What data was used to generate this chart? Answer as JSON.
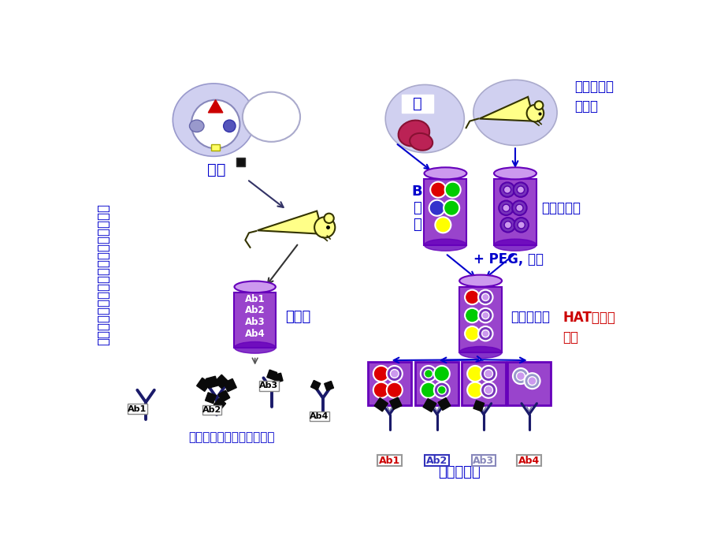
{
  "bg_color": "#ffffff",
  "title_vertical": "单克隆抗体和多克隆抗体产生区别示意图",
  "title_color": "#0000cc",
  "antigen_label": "抗原",
  "serum_label": "抗血清",
  "spleen_label": "脾",
  "bone_tumor_label": "骨髓瘤小鼠\n取腹水",
  "b_cell_label": "B\n细\n胞",
  "myeloma_label": "骨髓瘤细胞",
  "peg_label": "+ PEG, 融合",
  "hybridoma_label": "杂交瘤细胞",
  "hat_label": "HAT培养，\n稀释",
  "polyclonal_label": "普通抗血清（多克隆抗体）",
  "monoclonal_label": "单克隆抗体",
  "purple_dark": "#5500bb",
  "purple_mid": "#8844cc",
  "purple_light": "#cc99ee",
  "purple_body": "#9955cc",
  "blue_dark": "#0000cc",
  "yellow": "#ffff00",
  "red": "#dd0000",
  "green": "#00cc00",
  "dark_blue_cell": "#5533cc",
  "gray_light": "#ccccdd",
  "ab_border_blue": "#3333bb"
}
